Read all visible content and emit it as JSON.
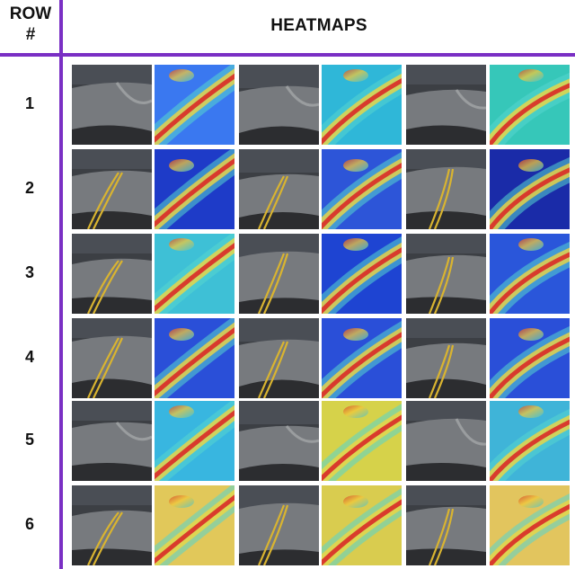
{
  "header": {
    "row_label_line1": "ROW",
    "row_label_line2": "#",
    "title": "HEATMAPS"
  },
  "colors": {
    "divider": "#7a2fc4",
    "road": "#6b6b6b",
    "lane_yellow": "#d9b430"
  },
  "rows": [
    {
      "label": "1",
      "heat_base": [
        "#3a78f0",
        "#2fb7d8",
        "#36c7b9"
      ],
      "lanes": false
    },
    {
      "label": "2",
      "heat_base": [
        "#1e3bc8",
        "#2d55d8",
        "#1a2ba8"
      ],
      "lanes": true
    },
    {
      "label": "3",
      "heat_base": [
        "#3ec0d6",
        "#1e44d2",
        "#2a56da"
      ],
      "lanes": true
    },
    {
      "label": "4",
      "heat_base": [
        "#2a4fd8",
        "#2a4fd8",
        "#2a4fd8"
      ],
      "lanes": true
    },
    {
      "label": "5",
      "heat_base": [
        "#38b6e0",
        "#d6d24a",
        "#3fb4d8"
      ],
      "lanes": false
    },
    {
      "label": "6",
      "heat_base": [
        "#e1c85a",
        "#d9cc4f",
        "#e2c55e"
      ],
      "lanes": true
    }
  ]
}
